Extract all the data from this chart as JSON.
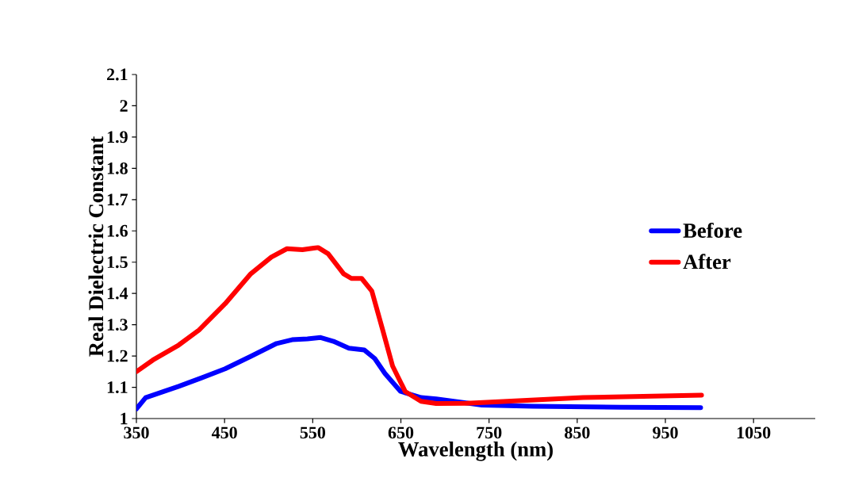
{
  "chart_data": {
    "type": "line",
    "xlabel": "Wavelength (nm)",
    "ylabel": "Real Dielectric Constant",
    "xlim": [
      350,
      1120
    ],
    "ylim": [
      1,
      2.1
    ],
    "xticks": [
      350,
      450,
      550,
      650,
      750,
      850,
      950,
      1050
    ],
    "yticks": [
      1,
      1.1,
      1.2,
      1.3,
      1.4,
      1.5,
      1.6,
      1.7,
      1.8,
      1.9,
      2,
      2.1
    ],
    "grid": false,
    "legend": "right",
    "marker": "none",
    "line_style": "solid",
    "series": [
      {
        "name": "Before",
        "color": "#0000ff",
        "x": [
          350,
          360.5,
          398,
          421,
          450.6,
          479.8,
          509,
          526.6,
          544,
          559,
          573.5,
          591,
          608.6,
          620.3,
          632,
          649.6,
          673,
          690,
          742,
          800,
          900,
          990
        ],
        "values": [
          1.031,
          1.067,
          1.103,
          1.127,
          1.159,
          1.199,
          1.24,
          1.252,
          1.255,
          1.259,
          1.247,
          1.225,
          1.219,
          1.192,
          1.144,
          1.087,
          1.067,
          1.063,
          1.043,
          1.039,
          1.036,
          1.035
        ]
      },
      {
        "name": "After",
        "color": "#ff0000",
        "x": [
          350,
          368.7,
          398,
          421,
          450.6,
          479.8,
          503,
          520.8,
          538.3,
          555.9,
          567.5,
          585,
          593.9,
          605.5,
          617,
          628.9,
          640.6,
          655,
          672.8,
          690,
          725,
          856.6,
          991
        ],
        "values": [
          1.15,
          1.187,
          1.235,
          1.283,
          1.367,
          1.463,
          1.516,
          1.543,
          1.54,
          1.547,
          1.527,
          1.463,
          1.448,
          1.448,
          1.408,
          1.288,
          1.168,
          1.086,
          1.055,
          1.048,
          1.049,
          1.067,
          1.075
        ]
      }
    ]
  }
}
